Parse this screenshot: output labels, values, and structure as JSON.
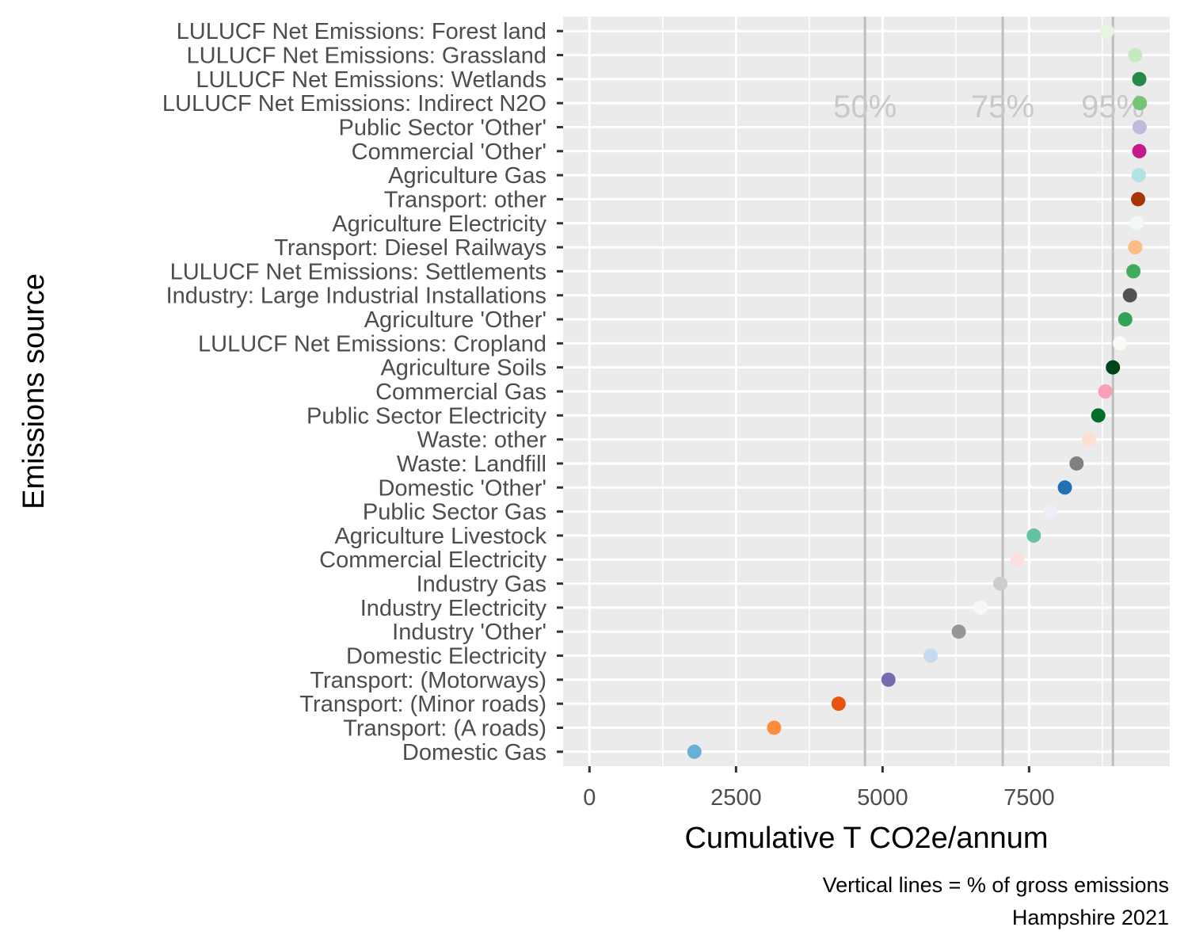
{
  "chart_data": {
    "type": "scatter",
    "xlabel": "Cumulative T CO2e/annum",
    "ylabel": "Emissions source",
    "caption_lines": [
      "Vertical lines = % of gross emissions",
      "Hampshire 2021"
    ],
    "xlim": [
      -450,
      9900
    ],
    "x_ticks": [
      0,
      2500,
      5000,
      7500
    ],
    "x_tick_labels": [
      "0",
      "2500",
      "5000",
      "7500"
    ],
    "grid": true,
    "legend": "none",
    "reference_lines": [
      {
        "label": "50%",
        "x": 4700
      },
      {
        "label": "75%",
        "x": 7050
      },
      {
        "label": "95%",
        "x": 8930
      }
    ],
    "points": [
      {
        "category": "Domestic Gas",
        "x": 1790,
        "color": "#6BAED6"
      },
      {
        "category": "Transport: (A roads)",
        "x": 3150,
        "color": "#FD8D3C"
      },
      {
        "category": "Transport: (Minor roads)",
        "x": 4250,
        "color": "#E6550D"
      },
      {
        "category": "Transport: (Motorways)",
        "x": 5100,
        "color": "#756BB1"
      },
      {
        "category": "Domestic Electricity",
        "x": 5820,
        "color": "#C6DBEF"
      },
      {
        "category": "Industry 'Other'",
        "x": 6300,
        "color": "#969696"
      },
      {
        "category": "Industry Electricity",
        "x": 6670,
        "color": "#F7F7F7"
      },
      {
        "category": "Industry Gas",
        "x": 7010,
        "color": "#CCCCCC"
      },
      {
        "category": "Commercial Electricity",
        "x": 7300,
        "color": "#FDE0DD"
      },
      {
        "category": "Agriculture Livestock",
        "x": 7580,
        "color": "#66C2A4"
      },
      {
        "category": "Public Sector Gas",
        "x": 7860,
        "color": "#EFEDF5"
      },
      {
        "category": "Domestic 'Other'",
        "x": 8110,
        "color": "#2171B5"
      },
      {
        "category": "Waste: Landfill",
        "x": 8310,
        "color": "#808080"
      },
      {
        "category": "Waste: other",
        "x": 8520,
        "color": "#FEE0D2"
      },
      {
        "category": "Public Sector Electricity",
        "x": 8680,
        "color": "#006D2C"
      },
      {
        "category": "Commercial Gas",
        "x": 8800,
        "color": "#FA9FB5"
      },
      {
        "category": "Agriculture Soils",
        "x": 8930,
        "color": "#00441B"
      },
      {
        "category": "LULUCF Net Emissions: Cropland",
        "x": 9050,
        "color": "#F7FCF5"
      },
      {
        "category": "Agriculture 'Other'",
        "x": 9140,
        "color": "#31A354"
      },
      {
        "category": "Industry: Large Industrial Installations",
        "x": 9220,
        "color": "#525252"
      },
      {
        "category": "LULUCF Net Emissions: Settlements",
        "x": 9280,
        "color": "#41AB5D"
      },
      {
        "category": "Transport: Diesel Railways",
        "x": 9310,
        "color": "#FDBE85"
      },
      {
        "category": "Agriculture Electricity",
        "x": 9340,
        "color": "#F0F8F8"
      },
      {
        "category": "Transport: other",
        "x": 9360,
        "color": "#A63603"
      },
      {
        "category": "Agriculture Gas",
        "x": 9370,
        "color": "#B2E2E2"
      },
      {
        "category": "Commercial 'Other'",
        "x": 9380,
        "color": "#C51B8A"
      },
      {
        "category": "Public Sector 'Other'",
        "x": 9385,
        "color": "#BCBDDC"
      },
      {
        "category": "LULUCF Net Emissions: Indirect N2O",
        "x": 9390,
        "color": "#74C476"
      },
      {
        "category": "LULUCF Net Emissions: Wetlands",
        "x": 9380,
        "color": "#238B45"
      },
      {
        "category": "LULUCF Net Emissions: Grassland",
        "x": 9310,
        "color": "#C7E9C0"
      },
      {
        "category": "LULUCF Net Emissions: Forest land",
        "x": 8830,
        "color": "#E5F5E0"
      }
    ]
  }
}
